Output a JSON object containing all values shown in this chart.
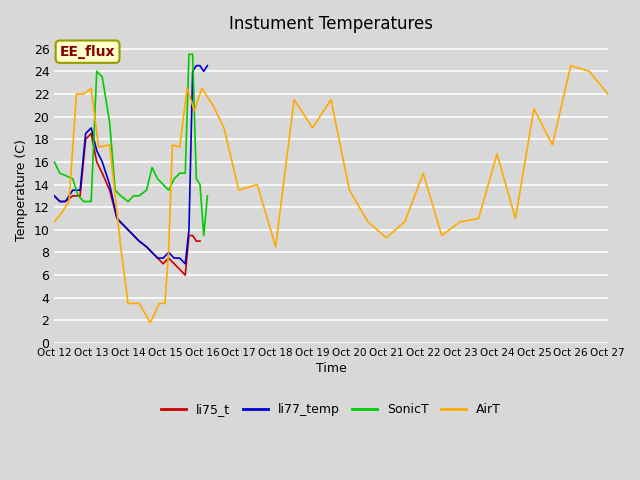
{
  "title": "Instument Temperatures",
  "xlabel": "Time",
  "ylabel": "Temperature (C)",
  "ylim": [
    0,
    27
  ],
  "xlim": [
    0,
    15
  ],
  "background_color": "#d8d8d8",
  "grid_color": "white",
  "annotation_text": "EE_flux",
  "annotation_bg": "#ffffcc",
  "annotation_border": "#999900",
  "legend_entries": [
    "li75_t",
    "li77_temp",
    "SonicT",
    "AirT"
  ],
  "line_colors": [
    "#cc0000",
    "#0000cc",
    "#00cc00",
    "#ffaa00"
  ],
  "xtick_labels": [
    "Oct 12",
    "Oct 13",
    "Oct 14",
    "Oct 15",
    "Oct 16",
    "Oct 17",
    "Oct 18",
    "Oct 19",
    "Oct 20",
    "Oct 21",
    "Oct 22",
    "Oct 23",
    "Oct 24",
    "Oct 25",
    "Oct 26",
    "Oct 27"
  ],
  "series": {
    "li75_t": {
      "x": [
        0.0,
        0.15,
        0.3,
        0.5,
        0.7,
        0.85,
        1.0,
        1.15,
        1.3,
        1.5,
        1.7,
        1.85,
        2.0,
        2.15,
        2.3,
        2.5,
        2.65,
        2.8,
        2.95,
        3.1,
        3.25,
        3.4,
        3.55,
        3.65,
        3.75,
        3.85,
        3.95
      ],
      "y": [
        13.0,
        12.5,
        12.5,
        13.0,
        13.0,
        18.0,
        18.5,
        16.0,
        15.0,
        13.5,
        11.0,
        10.5,
        10.0,
        9.5,
        9.0,
        8.5,
        8.0,
        7.5,
        7.0,
        7.5,
        7.0,
        6.5,
        6.0,
        9.5,
        9.5,
        9.0,
        9.0
      ]
    },
    "li77_temp": {
      "x": [
        0.0,
        0.15,
        0.3,
        0.5,
        0.7,
        0.85,
        1.0,
        1.15,
        1.3,
        1.5,
        1.7,
        1.85,
        2.0,
        2.15,
        2.3,
        2.5,
        2.65,
        2.8,
        2.95,
        3.1,
        3.25,
        3.4,
        3.55,
        3.65,
        3.75,
        3.85,
        3.95,
        4.05,
        4.15
      ],
      "y": [
        13.0,
        12.5,
        12.5,
        13.5,
        13.5,
        18.5,
        19.0,
        17.0,
        16.0,
        14.0,
        11.0,
        10.5,
        10.0,
        9.5,
        9.0,
        8.5,
        8.0,
        7.5,
        7.5,
        8.0,
        7.5,
        7.5,
        7.0,
        10.0,
        24.0,
        24.5,
        24.5,
        24.0,
        24.5
      ]
    },
    "SonicT": {
      "x": [
        0.0,
        0.15,
        0.3,
        0.5,
        0.65,
        0.8,
        1.0,
        1.15,
        1.3,
        1.5,
        1.65,
        1.8,
        2.0,
        2.15,
        2.3,
        2.5,
        2.65,
        2.8,
        2.95,
        3.1,
        3.25,
        3.4,
        3.55,
        3.65,
        3.75,
        3.85,
        3.95,
        4.05,
        4.15
      ],
      "y": [
        16.0,
        15.0,
        14.8,
        14.5,
        13.0,
        12.5,
        12.5,
        24.0,
        23.5,
        19.5,
        13.5,
        13.0,
        12.5,
        13.0,
        13.0,
        13.5,
        15.5,
        14.5,
        14.0,
        13.5,
        14.5,
        15.0,
        15.0,
        25.5,
        25.5,
        14.5,
        14.0,
        9.5,
        13.0
      ]
    },
    "AirT": {
      "x": [
        0.0,
        0.2,
        0.4,
        0.6,
        0.8,
        1.0,
        1.2,
        1.5,
        1.8,
        2.0,
        2.3,
        2.6,
        2.85,
        3.0,
        3.1,
        3.2,
        3.4,
        3.6,
        3.8,
        4.0,
        4.3,
        4.6,
        5.0,
        5.5,
        6.0,
        6.5,
        7.0,
        7.5,
        8.0,
        8.5,
        9.0,
        9.5,
        10.0,
        10.5,
        11.0,
        11.5,
        12.0,
        12.5,
        13.0,
        13.5,
        14.0,
        14.5,
        15.0
      ],
      "y": [
        10.7,
        11.5,
        12.5,
        22.0,
        22.0,
        22.5,
        17.3,
        17.5,
        8.5,
        3.5,
        3.5,
        1.8,
        3.5,
        3.5,
        8.2,
        17.5,
        17.3,
        22.5,
        20.5,
        22.5,
        21.0,
        19.0,
        13.5,
        14.0,
        8.5,
        21.5,
        19.0,
        21.5,
        13.5,
        10.7,
        9.3,
        10.7,
        15.0,
        9.5,
        10.7,
        11.0,
        16.7,
        11.0,
        20.7,
        17.5,
        24.5,
        24.0,
        22.0
      ]
    }
  }
}
